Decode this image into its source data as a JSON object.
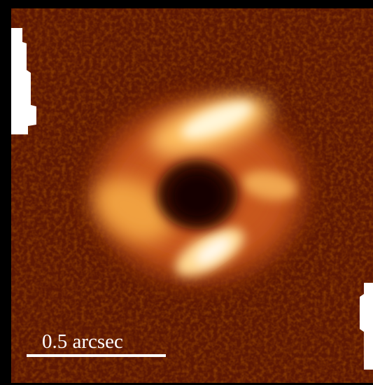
{
  "image": {
    "scale_bar_label": "0.5 arcsec"
  }
}
